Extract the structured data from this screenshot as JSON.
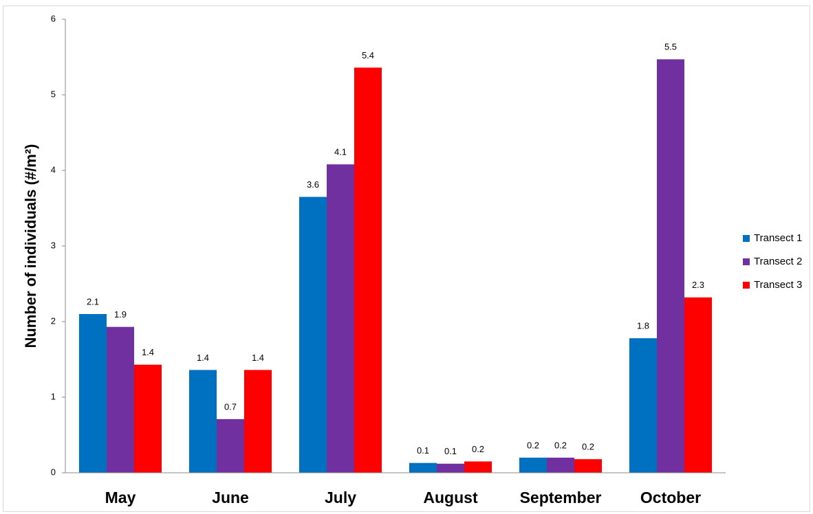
{
  "chart_data": {
    "type": "bar",
    "y_label": "Number of individuals (#/m²)",
    "categories": [
      "May",
      "June",
      "July",
      "August",
      "September",
      "October"
    ],
    "series": [
      {
        "name": "Transect 1",
        "color": "#0070c0",
        "values": [
          2.1,
          1.36,
          3.65,
          0.13,
          0.2,
          1.78
        ],
        "value_labels": [
          "2.1",
          "1.4",
          "3.6",
          "0.1",
          "0.2",
          "1.8"
        ]
      },
      {
        "name": "Transect 2",
        "color": "#7030a0",
        "values": [
          1.93,
          0.71,
          4.08,
          0.12,
          0.2,
          5.47
        ],
        "value_labels": [
          "1.9",
          "0.7",
          "4.1",
          "0.1",
          "0.2",
          "5.5"
        ]
      },
      {
        "name": "Transect 3",
        "color": "#ff0000",
        "values": [
          1.43,
          1.36,
          5.36,
          0.15,
          0.18,
          2.32
        ],
        "value_labels": [
          "1.4",
          "1.4",
          "5.4",
          "0.2",
          "0.2",
          "2.3"
        ]
      }
    ],
    "ylim": [
      0,
      6
    ],
    "yticks": [
      0,
      1,
      2,
      3,
      4,
      5,
      6
    ],
    "grid": false,
    "legend": "right"
  }
}
